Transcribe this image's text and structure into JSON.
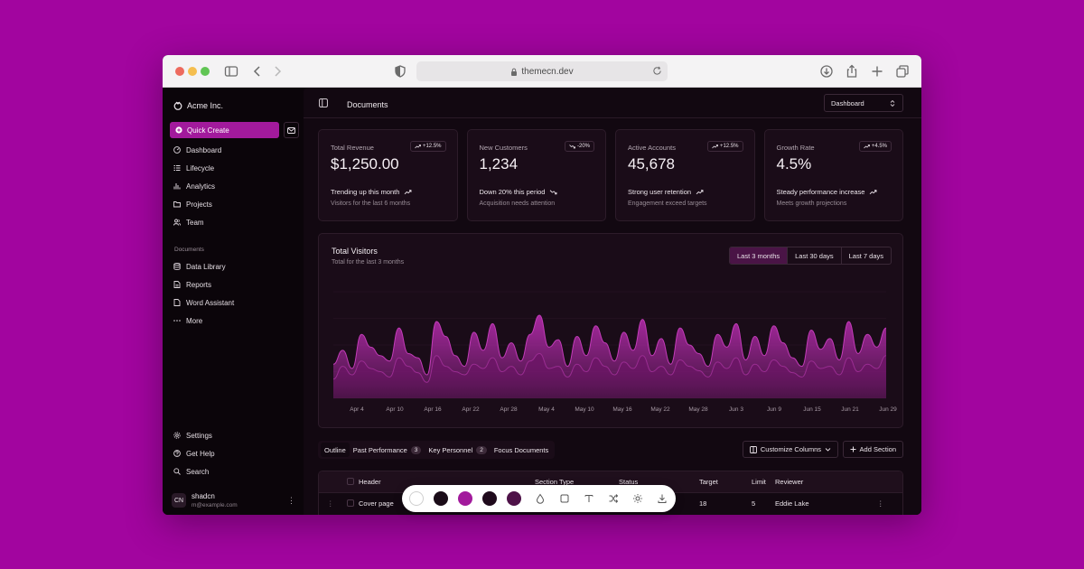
{
  "browser": {
    "url": "themecn.dev"
  },
  "sidebar": {
    "brand": "Acme Inc.",
    "quick_create": "Quick Create",
    "nav": [
      {
        "label": "Dashboard",
        "icon": "gauge-icon"
      },
      {
        "label": "Lifecycle",
        "icon": "list-icon"
      },
      {
        "label": "Analytics",
        "icon": "chart-icon"
      },
      {
        "label": "Projects",
        "icon": "folder-icon"
      },
      {
        "label": "Team",
        "icon": "users-icon"
      }
    ],
    "documents_heading": "Documents",
    "documents": [
      {
        "label": "Data Library",
        "icon": "database-icon"
      },
      {
        "label": "Reports",
        "icon": "report-icon"
      },
      {
        "label": "Word Assistant",
        "icon": "file-icon"
      },
      {
        "label": "More",
        "icon": "dots-icon"
      }
    ],
    "footer": [
      {
        "label": "Settings",
        "icon": "settings-icon"
      },
      {
        "label": "Get Help",
        "icon": "help-icon"
      },
      {
        "label": "Search",
        "icon": "search-icon"
      }
    ],
    "user": {
      "initials": "CN",
      "name": "shadcn",
      "email": "m@example.com"
    }
  },
  "header": {
    "title": "Documents",
    "view_select": "Dashboard"
  },
  "cards": [
    {
      "label": "Total Revenue",
      "value": "$1,250.00",
      "badge": "+12.5%",
      "trend": "Trending up this month",
      "sub": "Visitors for the last 6 months",
      "direction": "up"
    },
    {
      "label": "New Customers",
      "value": "1,234",
      "badge": "-20%",
      "trend": "Down 20% this period",
      "sub": "Acquisition needs attention",
      "direction": "down"
    },
    {
      "label": "Active Accounts",
      "value": "45,678",
      "badge": "+12.5%",
      "trend": "Strong user retention",
      "sub": "Engagement exceed targets",
      "direction": "up"
    },
    {
      "label": "Growth Rate",
      "value": "4.5%",
      "badge": "+4.5%",
      "trend": "Steady performance increase",
      "sub": "Meets growth projections",
      "direction": "up"
    }
  ],
  "visitors": {
    "title": "Total Visitors",
    "subtitle": "Total for the last 3 months",
    "ranges": [
      "Last 3 months",
      "Last 30 days",
      "Last 7 days"
    ],
    "active_range": "Last 3 months"
  },
  "chart_data": {
    "type": "area",
    "x_tick_labels": [
      "Apr 4",
      "Apr 10",
      "Apr 16",
      "Apr 22",
      "Apr 28",
      "May 4",
      "May 10",
      "May 16",
      "May 22",
      "May 28",
      "Jun 3",
      "Jun 9",
      "Jun 15",
      "Jun 21",
      "Jun 29"
    ],
    "series": [
      {
        "values": [
          0.18,
          0.3,
          0.22,
          0.35,
          0.28,
          0.25,
          0.2,
          0.38,
          0.3,
          0.24,
          0.15,
          0.4,
          0.3,
          0.25,
          0.22,
          0.32,
          0.28,
          0.38,
          0.25,
          0.3,
          0.22,
          0.35,
          0.42,
          0.28,
          0.3,
          0.2,
          0.32,
          0.25,
          0.38,
          0.3,
          0.22,
          0.34,
          0.28,
          0.4,
          0.25,
          0.3,
          0.22,
          0.36,
          0.3,
          0.26,
          0.2,
          0.34,
          0.28,
          0.38,
          0.22,
          0.32,
          0.25,
          0.36,
          0.3,
          0.24,
          0.2,
          0.35,
          0.28,
          0.3,
          0.22,
          0.38,
          0.25,
          0.32,
          0.28,
          0.4
        ]
      },
      {
        "values": [
          0.32,
          0.45,
          0.28,
          0.6,
          0.48,
          0.4,
          0.35,
          0.66,
          0.42,
          0.38,
          0.22,
          0.72,
          0.58,
          0.4,
          0.3,
          0.62,
          0.45,
          0.7,
          0.38,
          0.52,
          0.35,
          0.6,
          0.78,
          0.48,
          0.55,
          0.3,
          0.58,
          0.4,
          0.68,
          0.52,
          0.35,
          0.62,
          0.45,
          0.74,
          0.4,
          0.56,
          0.32,
          0.66,
          0.5,
          0.42,
          0.3,
          0.6,
          0.48,
          0.7,
          0.36,
          0.58,
          0.4,
          0.68,
          0.52,
          0.38,
          0.3,
          0.64,
          0.46,
          0.56,
          0.36,
          0.72,
          0.42,
          0.6,
          0.48,
          0.66
        ]
      }
    ],
    "colors": [
      "#6c1466",
      "#b02aa8"
    ]
  },
  "table_toolbar": {
    "tabs": [
      {
        "label": "Outline",
        "count": null
      },
      {
        "label": "Past Performance",
        "count": "3"
      },
      {
        "label": "Key Personnel",
        "count": "2"
      },
      {
        "label": "Focus Documents",
        "count": null
      }
    ],
    "active_tab": "Outline",
    "customize": "Customize Columns",
    "add": "Add Section"
  },
  "table": {
    "columns": [
      "Header",
      "Section Type",
      "Status",
      "Target",
      "Limit",
      "Reviewer"
    ],
    "rows": [
      {
        "header": "Cover page",
        "section_type": "",
        "status": "",
        "target": "18",
        "limit": "5",
        "reviewer": "Eddie Lake"
      }
    ]
  },
  "swatches": [
    "#ffffff",
    "#1a0c18",
    "#a21a9c",
    "#1f0a1c",
    "#4e1248"
  ],
  "tools": [
    "drop-icon",
    "square-icon",
    "type-icon",
    "shuffle-icon",
    "sun-icon",
    "download-icon"
  ]
}
